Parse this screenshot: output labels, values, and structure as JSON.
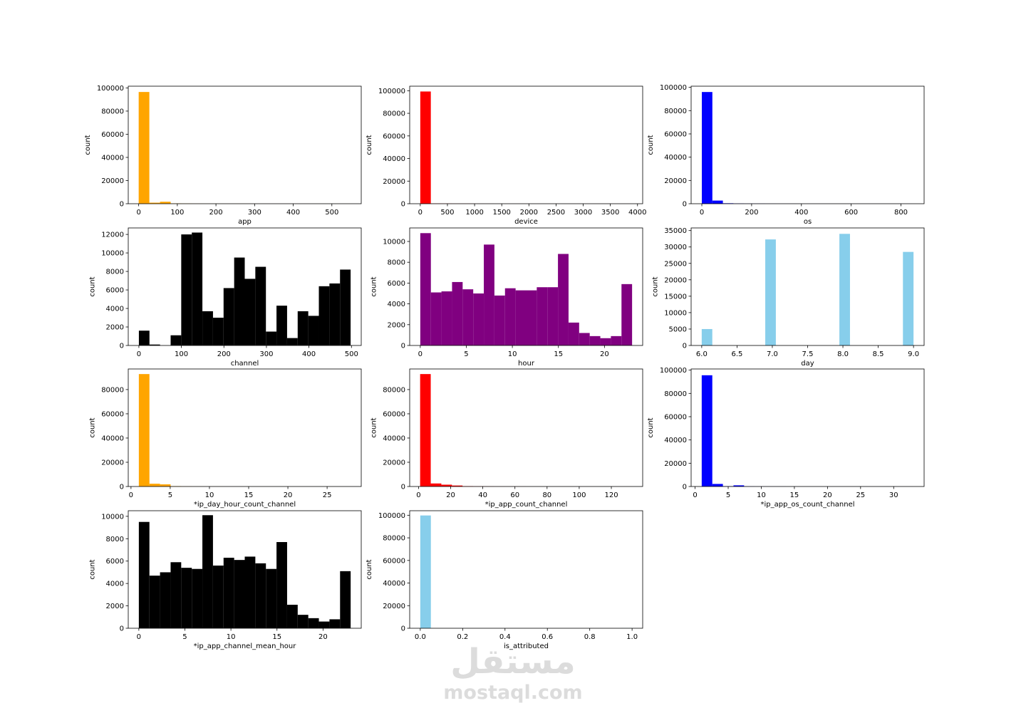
{
  "chart_data": [
    {
      "type": "bar",
      "xlabel": "app",
      "ylabel": "count",
      "color": "#ffa500",
      "x_ticks": [
        "0",
        "100",
        "200",
        "300",
        "400",
        "500"
      ],
      "y_ticks": [
        "0",
        "20000",
        "40000",
        "60000",
        "80000",
        "100000"
      ],
      "xlim": [
        -27,
        576
      ],
      "ylim": [
        0,
        101500
      ],
      "bins": {
        "start": 0,
        "width": 27.6
      },
      "values": [
        96500,
        900,
        1700,
        300,
        150,
        100,
        50,
        60,
        40,
        50,
        30,
        40,
        20,
        20,
        20,
        20,
        10,
        10,
        10,
        10
      ]
    },
    {
      "type": "bar",
      "xlabel": "device",
      "ylabel": "count",
      "color": "#ff0000",
      "x_ticks": [
        "0",
        "500",
        "1000",
        "1500",
        "2000",
        "2500",
        "3000",
        "3500",
        "4000"
      ],
      "y_ticks": [
        "0",
        "20000",
        "40000",
        "60000",
        "80000",
        "100000"
      ],
      "xlim": [
        -195,
        4095
      ],
      "ylim": [
        0,
        104000
      ],
      "bins": {
        "start": 0,
        "width": 194
      },
      "values": [
        99300,
        200,
        150,
        100,
        80,
        60,
        40,
        30,
        20,
        10,
        10,
        10,
        10,
        10,
        10,
        10,
        10,
        10,
        10,
        10
      ]
    },
    {
      "type": "bar",
      "xlabel": "os",
      "ylabel": "count",
      "color": "#0000ff",
      "x_ticks": [
        "0",
        "200",
        "400",
        "600",
        "800"
      ],
      "y_ticks": [
        "0",
        "20000",
        "40000",
        "60000",
        "80000",
        "100000"
      ],
      "xlim": [
        -43,
        893
      ],
      "ylim": [
        0,
        101000
      ],
      "bins": {
        "start": 0,
        "width": 42.3
      },
      "values": [
        96000,
        2700,
        400,
        200,
        100,
        80,
        60,
        40,
        30,
        20,
        20,
        10,
        10,
        10,
        10,
        10,
        10,
        10,
        10,
        10
      ]
    },
    {
      "type": "bar",
      "xlabel": "channel",
      "ylabel": "count",
      "color": "#000000",
      "x_ticks": [
        "0",
        "100",
        "200",
        "300",
        "400",
        "500"
      ],
      "y_ticks": [
        "0",
        "2000",
        "4000",
        "6000",
        "8000",
        "10000",
        "12000"
      ],
      "xlim": [
        -25,
        523
      ],
      "ylim": [
        0,
        12700
      ],
      "bins": {
        "start": 0,
        "width": 24.9
      },
      "values": [
        1600,
        100,
        0,
        1100,
        12000,
        12200,
        3700,
        3000,
        6200,
        9500,
        7200,
        8500,
        1500,
        4300,
        800,
        3700,
        3200,
        6400,
        6700,
        8200
      ]
    },
    {
      "type": "bar",
      "xlabel": "hour",
      "ylabel": "count",
      "color": "#800080",
      "x_ticks": [
        "0",
        "5",
        "10",
        "15",
        "20"
      ],
      "y_ticks": [
        "0",
        "2000",
        "4000",
        "6000",
        "8000",
        "10000"
      ],
      "xlim": [
        -1.15,
        24.15
      ],
      "ylim": [
        0,
        11300
      ],
      "bins": {
        "start": 0,
        "width": 1.15
      },
      "values": [
        10800,
        5100,
        5200,
        6100,
        5400,
        5000,
        9700,
        4800,
        5500,
        5300,
        5300,
        5600,
        5600,
        8800,
        2200,
        1200,
        900,
        700,
        900,
        5900
      ]
    },
    {
      "type": "bar",
      "xlabel": "day",
      "ylabel": "count",
      "color": "#87ceeb",
      "x_ticks": [
        "6.0",
        "6.5",
        "7.0",
        "7.5",
        "8.0",
        "8.5",
        "9.0"
      ],
      "y_ticks": [
        "0",
        "5000",
        "10000",
        "15000",
        "20000",
        "25000",
        "30000",
        "35000"
      ],
      "xlim": [
        5.85,
        9.15
      ],
      "ylim": [
        0,
        35800
      ],
      "bins": {
        "start": 6,
        "width": 0.15
      },
      "values": [
        5000,
        0,
        0,
        0,
        0,
        0,
        32300,
        0,
        0,
        0,
        0,
        0,
        0,
        34000,
        0,
        0,
        0,
        0,
        0,
        28500
      ]
    },
    {
      "type": "bar",
      "xlabel": "*ip_day_hour_count_channel",
      "ylabel": "count",
      "color": "#ffa500",
      "x_ticks": [
        "0",
        "5",
        "10",
        "15",
        "20",
        "25"
      ],
      "y_ticks": [
        "0",
        "20000",
        "40000",
        "60000",
        "80000"
      ],
      "xlim": [
        -0.35,
        29.35
      ],
      "ylim": [
        0,
        97000
      ],
      "bins": {
        "start": 1,
        "width": 1.35
      },
      "values": [
        92800,
        2300,
        1800,
        300,
        100,
        50,
        40,
        30,
        20,
        20,
        10,
        10,
        10,
        10,
        10,
        10,
        10,
        10,
        10,
        10
      ]
    },
    {
      "type": "bar",
      "xlabel": "*ip_app_count_channel",
      "ylabel": "count",
      "color": "#ff0000",
      "x_ticks": [
        "0",
        "20",
        "40",
        "60",
        "80",
        "100",
        "120"
      ],
      "y_ticks": [
        "0",
        "20000",
        "40000",
        "60000",
        "80000"
      ],
      "xlim": [
        -5.5,
        139.5
      ],
      "ylim": [
        0,
        97000
      ],
      "bins": {
        "start": 1,
        "width": 6.6
      },
      "values": [
        92800,
        2500,
        1500,
        800,
        300,
        150,
        100,
        60,
        40,
        30,
        20,
        20,
        10,
        10,
        10,
        10,
        10,
        10,
        10,
        10
      ]
    },
    {
      "type": "bar",
      "xlabel": "*ip_app_os_count_channel",
      "ylabel": "count",
      "color": "#0000ff",
      "x_ticks": [
        "0",
        "5",
        "10",
        "15",
        "20",
        "25",
        "30"
      ],
      "y_ticks": [
        "0",
        "20000",
        "40000",
        "60000",
        "80000",
        "100000"
      ],
      "xlim": [
        -0.6,
        34.6
      ],
      "ylim": [
        0,
        101000
      ],
      "bins": {
        "start": 1,
        "width": 1.6
      },
      "values": [
        95600,
        2200,
        300,
        1000,
        100,
        60,
        40,
        30,
        20,
        20,
        10,
        10,
        10,
        10,
        10,
        10,
        10,
        10,
        10,
        10
      ]
    },
    {
      "type": "bar",
      "xlabel": "*ip_app_channel_mean_hour",
      "ylabel": "count",
      "color": "#000000",
      "x_ticks": [
        "0",
        "5",
        "10",
        "15",
        "20"
      ],
      "y_ticks": [
        "0",
        "2000",
        "4000",
        "6000",
        "8000",
        "10000"
      ],
      "xlim": [
        -1.15,
        24.15
      ],
      "ylim": [
        0,
        10500
      ],
      "bins": {
        "start": 0,
        "width": 1.15
      },
      "values": [
        9500,
        4700,
        5000,
        5900,
        5400,
        5300,
        10100,
        5600,
        6300,
        6100,
        6400,
        5800,
        5300,
        7700,
        2100,
        1200,
        900,
        600,
        800,
        5100
      ]
    },
    {
      "type": "bar",
      "xlabel": "is_attributed",
      "ylabel": "count",
      "color": "#87ceeb",
      "x_ticks": [
        "0.0",
        "0.2",
        "0.4",
        "0.6",
        "0.8",
        "1.0"
      ],
      "y_ticks": [
        "0",
        "20000",
        "40000",
        "60000",
        "80000",
        "100000"
      ],
      "xlim": [
        -0.05,
        1.05
      ],
      "ylim": [
        0,
        104000
      ],
      "bins": {
        "start": 0,
        "width": 0.05
      },
      "values": [
        99800,
        0,
        0,
        0,
        0,
        0,
        0,
        0,
        0,
        0,
        0,
        0,
        0,
        0,
        0,
        0,
        0,
        0,
        0,
        150
      ]
    }
  ],
  "watermark": {
    "logo": "مستقل",
    "site": "mostaql.com"
  }
}
